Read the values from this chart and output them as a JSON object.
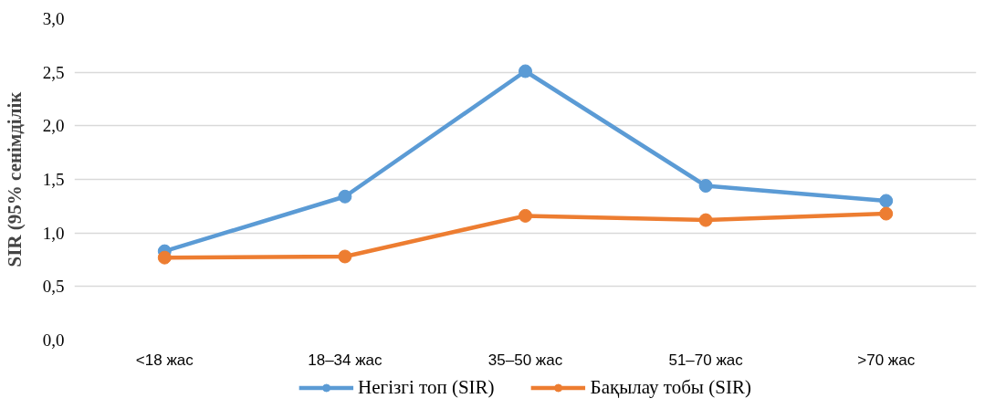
{
  "chart_data": {
    "type": "line",
    "ylabel": "SIR (95% сенімділік",
    "categories": [
      "<18 жас",
      "18–34 жас",
      "35–50 жас",
      "51–70 жас",
      ">70 жас"
    ],
    "series": [
      {
        "name": "Негізгі топ (SIR)",
        "color": "#5b9bd5",
        "values": [
          0.83,
          1.34,
          2.51,
          1.44,
          1.3
        ]
      },
      {
        "name": "Бақылау тобы (SIR)",
        "color": "#ed7d31",
        "values": [
          0.77,
          0.78,
          1.16,
          1.12,
          1.18
        ]
      }
    ],
    "ylim": [
      0,
      3
    ],
    "yticks": [
      {
        "value": 0,
        "label": "0,0"
      },
      {
        "value": 0.5,
        "label": "0,5"
      },
      {
        "value": 1,
        "label": "1,0"
      },
      {
        "value": 1.5,
        "label": "1,5"
      },
      {
        "value": 2,
        "label": "2,0"
      },
      {
        "value": 2.5,
        "label": "2,5"
      },
      {
        "value": 3,
        "label": "3,0"
      }
    ],
    "grid": "y",
    "legend": "bottom",
    "marker": "circle",
    "line_style": "solid"
  }
}
